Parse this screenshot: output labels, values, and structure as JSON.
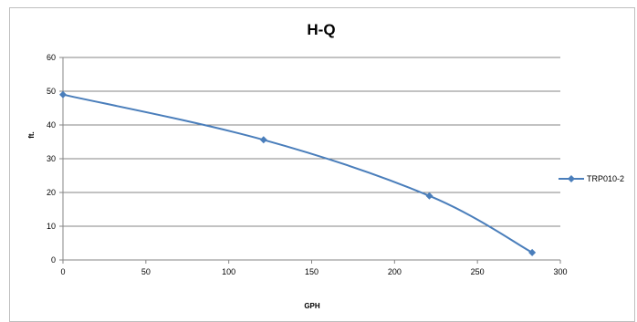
{
  "chart_data": {
    "type": "line",
    "title": "H-Q",
    "xlabel": "GPH",
    "ylabel": "ft.",
    "xlim": [
      0,
      300
    ],
    "ylim": [
      0,
      60
    ],
    "x_ticks": [
      "0",
      "50",
      "100",
      "150",
      "200",
      "250",
      "300"
    ],
    "y_ticks": [
      "0",
      "10",
      "20",
      "30",
      "40",
      "50",
      "60"
    ],
    "grid": "horizontal",
    "legend_position": "right",
    "series": [
      {
        "name": "TRP010-2",
        "color": "#4a7ebb",
        "marker": "diamond",
        "smooth": true,
        "x": [
          0,
          121,
          221,
          283
        ],
        "y": [
          49,
          35.6,
          19,
          2.2
        ]
      }
    ]
  }
}
